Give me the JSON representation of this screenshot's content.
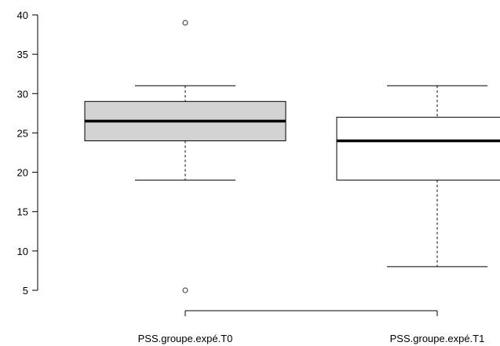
{
  "chart_data": {
    "type": "boxplot",
    "title": "",
    "xlabel": "",
    "ylabel": "",
    "ylim": [
      5,
      40
    ],
    "y_ticks": [
      5,
      10,
      15,
      20,
      25,
      30,
      35,
      40
    ],
    "categories": [
      "PSS.groupe.expé.T0",
      "PSS.groupe.expé.T1"
    ],
    "boxes": [
      {
        "category": "PSS.groupe.expé.T0",
        "whisker_low": 19,
        "q1": 24,
        "median": 26.5,
        "q3": 29,
        "whisker_high": 31,
        "outliers": [
          39,
          5
        ],
        "fill": "#d3d3d3"
      },
      {
        "category": "PSS.groupe.expé.T1",
        "whisker_low": 8,
        "q1": 19,
        "median": 24,
        "q3": 27,
        "whisker_high": 31,
        "outliers": [],
        "fill": "#ffffff"
      }
    ],
    "grid": false,
    "colors": {
      "stroke": "#000000",
      "outlier": "#555555"
    }
  }
}
